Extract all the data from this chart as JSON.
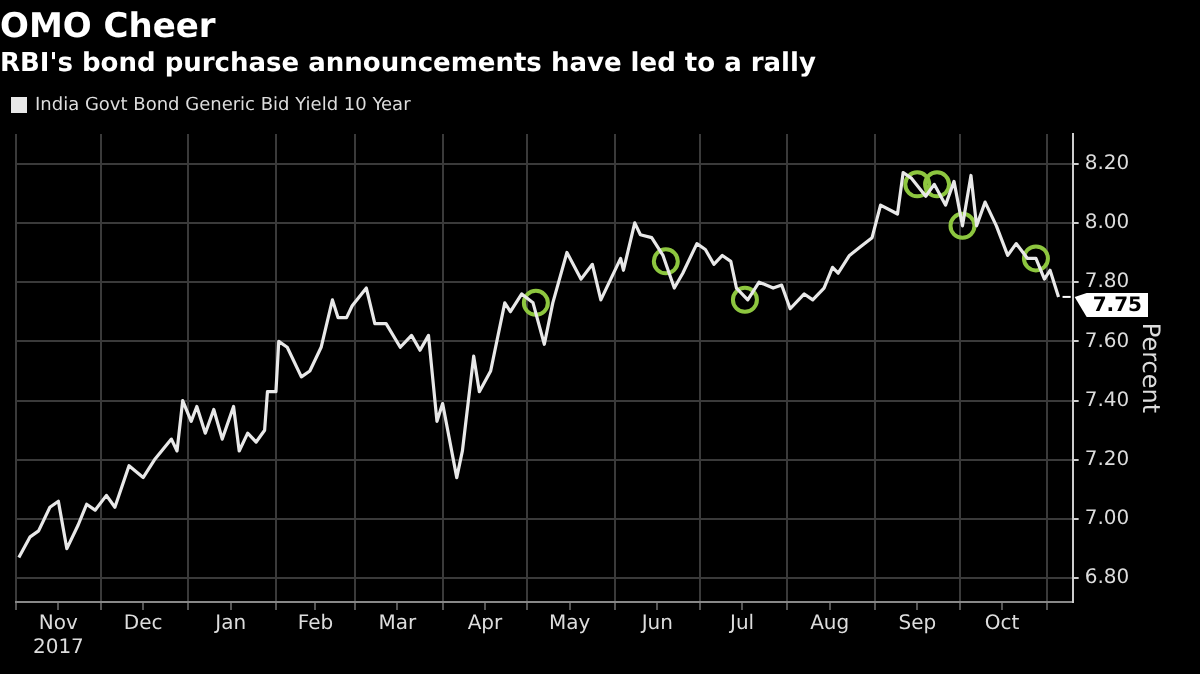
{
  "chart_data": {
    "type": "line",
    "title": "OMO Cheer",
    "subtitle": "RBI's bond purchase announcements have led to a rally",
    "ylabel": "Percent",
    "xlim": [
      "2017-11-01",
      "2018-11-10"
    ],
    "xticks": [
      {
        "value": "2017-11-01",
        "label": null
      },
      {
        "value": "2017-11-16",
        "label": "Nov\n2017"
      },
      {
        "value": "2017-12-01",
        "label": null
      },
      {
        "value": "2017-12-16",
        "label": "Dec"
      },
      {
        "value": "2018-01-01",
        "label": null
      },
      {
        "value": "2018-01-16",
        "label": "Jan"
      },
      {
        "value": "2018-02-01",
        "label": null
      },
      {
        "value": "2018-02-15",
        "label": "Feb"
      },
      {
        "value": "2018-03-01",
        "label": null
      },
      {
        "value": "2018-03-16",
        "label": "Mar"
      },
      {
        "value": "2018-04-01",
        "label": null
      },
      {
        "value": "2018-04-16",
        "label": "Apr"
      },
      {
        "value": "2018-05-01",
        "label": null
      },
      {
        "value": "2018-05-16",
        "label": "May"
      },
      {
        "value": "2018-06-01",
        "label": null
      },
      {
        "value": "2018-06-16",
        "label": "Jun"
      },
      {
        "value": "2018-07-01",
        "label": null
      },
      {
        "value": "2018-07-16",
        "label": "Jul"
      },
      {
        "value": "2018-08-01",
        "label": null
      },
      {
        "value": "2018-08-16",
        "label": "Aug"
      },
      {
        "value": "2018-09-01",
        "label": null
      },
      {
        "value": "2018-09-16",
        "label": "Sep"
      },
      {
        "value": "2018-10-01",
        "label": null
      },
      {
        "value": "2018-10-16",
        "label": "Oct"
      },
      {
        "value": "2018-11-01",
        "label": null
      }
    ],
    "ylim": [
      6.72,
      8.3
    ],
    "yticks": [
      {
        "value": 6.8,
        "label": "6.80"
      },
      {
        "value": 7.0,
        "label": "7.00"
      },
      {
        "value": 7.2,
        "label": "7.20"
      },
      {
        "value": 7.4,
        "label": "7.40"
      },
      {
        "value": 7.6,
        "label": "7.60"
      },
      {
        "value": 7.8,
        "label": "7.80"
      },
      {
        "value": 8.0,
        "label": "8.00"
      },
      {
        "value": 8.2,
        "label": "8.20"
      }
    ],
    "grid": true,
    "legend": "top left",
    "marker": "none",
    "line_style": "solid",
    "series": [
      {
        "name": "India Govt Bond Generic Bid Yield 10 Year",
        "color": "#e8e8e8",
        "x": [
          "2017-11-02",
          "2017-11-06",
          "2017-11-09",
          "2017-11-13",
          "2017-11-16",
          "2017-11-19",
          "2017-11-23",
          "2017-11-26",
          "2017-11-29",
          "2017-12-03",
          "2017-12-06",
          "2017-12-11",
          "2017-12-16",
          "2017-12-20",
          "2017-12-26",
          "2017-12-28",
          "2017-12-30",
          "2018-01-02",
          "2018-01-04",
          "2018-01-07",
          "2018-01-10",
          "2018-01-13",
          "2018-01-17",
          "2018-01-19",
          "2018-01-22",
          "2018-01-25",
          "2018-01-28",
          "2018-01-29",
          "2018-02-01",
          "2018-02-02",
          "2018-02-05",
          "2018-02-10",
          "2018-02-13",
          "2018-02-17",
          "2018-02-21",
          "2018-02-23",
          "2018-02-26",
          "2018-02-28",
          "2018-03-05",
          "2018-03-08",
          "2018-03-12",
          "2018-03-17",
          "2018-03-21",
          "2018-03-24",
          "2018-03-27",
          "2018-03-30",
          "2018-04-01",
          "2018-04-06",
          "2018-04-08",
          "2018-04-12",
          "2018-04-14",
          "2018-04-18",
          "2018-04-23",
          "2018-04-25",
          "2018-04-29",
          "2018-05-03",
          "2018-05-07",
          "2018-05-10",
          "2018-05-15",
          "2018-05-20",
          "2018-05-24",
          "2018-05-27",
          "2018-06-03",
          "2018-06-04",
          "2018-06-08",
          "2018-06-10",
          "2018-06-14",
          "2018-06-18",
          "2018-06-22",
          "2018-06-25",
          "2018-06-30",
          "2018-07-03",
          "2018-07-06",
          "2018-07-09",
          "2018-07-12",
          "2018-07-14",
          "2018-07-18",
          "2018-07-22",
          "2018-07-27",
          "2018-07-30",
          "2018-08-02",
          "2018-08-07",
          "2018-08-10",
          "2018-08-14",
          "2018-08-17",
          "2018-08-19",
          "2018-08-23",
          "2018-08-27",
          "2018-08-31",
          "2018-09-03",
          "2018-09-07",
          "2018-09-09",
          "2018-09-11",
          "2018-09-14",
          "2018-09-19",
          "2018-09-22",
          "2018-09-26",
          "2018-09-29",
          "2018-10-02",
          "2018-10-05",
          "2018-10-07",
          "2018-10-10",
          "2018-10-14",
          "2018-10-18",
          "2018-10-21",
          "2018-10-25",
          "2018-10-28",
          "2018-10-31",
          "2018-11-02",
          "2018-11-05"
        ],
        "values": [
          6.87,
          6.94,
          6.96,
          7.04,
          7.06,
          6.9,
          6.98,
          7.05,
          7.03,
          7.08,
          7.04,
          7.18,
          7.14,
          7.2,
          7.27,
          7.23,
          7.4,
          7.33,
          7.38,
          7.29,
          7.37,
          7.27,
          7.38,
          7.23,
          7.29,
          7.26,
          7.3,
          7.43,
          7.43,
          7.6,
          7.58,
          7.48,
          7.5,
          7.58,
          7.74,
          7.68,
          7.68,
          7.72,
          7.78,
          7.66,
          7.66,
          7.58,
          7.62,
          7.57,
          7.62,
          7.33,
          7.39,
          7.14,
          7.23,
          7.55,
          7.43,
          7.5,
          7.73,
          7.7,
          7.76,
          7.73,
          7.59,
          7.73,
          7.9,
          7.81,
          7.86,
          7.74,
          7.88,
          7.84,
          8.0,
          7.96,
          7.95,
          7.89,
          7.78,
          7.83,
          7.93,
          7.91,
          7.86,
          7.89,
          7.87,
          7.78,
          7.74,
          7.8,
          7.78,
          7.79,
          7.71,
          7.76,
          7.74,
          7.78,
          7.85,
          7.83,
          7.89,
          7.92,
          7.95,
          8.06,
          8.04,
          8.03,
          8.17,
          8.15,
          8.09,
          8.13,
          8.06,
          8.14,
          7.99,
          8.16,
          7.99,
          8.07,
          7.99,
          7.89,
          7.93,
          7.88,
          7.88,
          7.81,
          7.84,
          7.75
        ]
      },
      {
        "type": "scatter",
        "marker": "circle",
        "color": "#8dc63f",
        "x": [
          "2018-05-04",
          "2018-06-19",
          "2018-07-17",
          "2018-09-16",
          "2018-09-23",
          "2018-10-02",
          "2018-10-28"
        ],
        "values": [
          7.73,
          7.87,
          7.74,
          8.13,
          8.13,
          7.99,
          7.88
        ]
      }
    ],
    "annotations": [
      {
        "text": "7.75",
        "x": "2018-11-05",
        "y": 7.75
      }
    ]
  }
}
